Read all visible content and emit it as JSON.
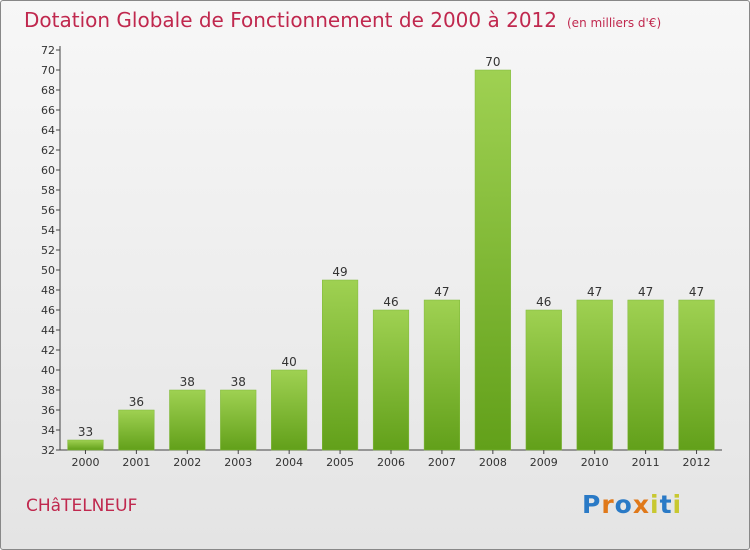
{
  "header": {
    "title": "Dotation Globale de Fonctionnement de 2000 à 2012",
    "subtitle": "(en milliers d'€)"
  },
  "footer": {
    "town": "CHâTELNEUF",
    "brand": "Proxiti"
  },
  "colors": {
    "title": "#c0284e",
    "bar_top": "#9fd152",
    "bar_bottom": "#62a01a",
    "brand_letters": [
      "#2a7ac6",
      "#e0791a",
      "#2a7ac6",
      "#e0791a",
      "#c8c830",
      "#2a7ac6",
      "#c8c830"
    ]
  },
  "chart_data": {
    "type": "bar",
    "categories": [
      "2000",
      "2001",
      "2002",
      "2003",
      "2004",
      "2005",
      "2006",
      "2007",
      "2008",
      "2009",
      "2010",
      "2011",
      "2012"
    ],
    "values": [
      33,
      36,
      38,
      38,
      40,
      49,
      46,
      47,
      70,
      46,
      47,
      47,
      47
    ],
    "ylim": [
      32,
      72
    ],
    "ytick_step": 2,
    "grid": false
  }
}
